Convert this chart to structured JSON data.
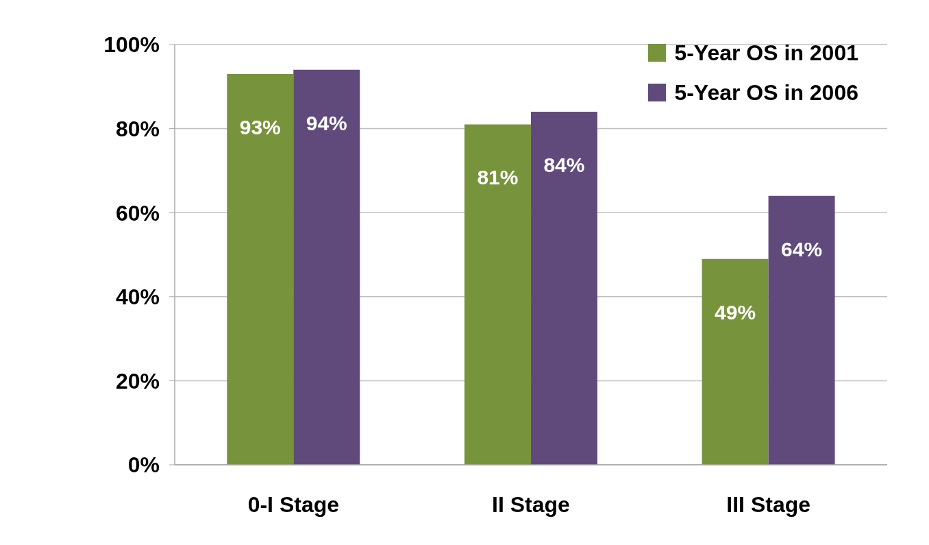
{
  "chart_data": {
    "type": "bar",
    "categories": [
      "0-I Stage",
      "II Stage",
      "III Stage"
    ],
    "series": [
      {
        "name": "5-Year OS in 2001",
        "color": "#77933c",
        "values": [
          93,
          81,
          49
        ],
        "value_labels": [
          "93%",
          "81%",
          "49%"
        ]
      },
      {
        "name": "5-Year OS in 2006",
        "color": "#604a7b",
        "values": [
          94,
          84,
          64
        ],
        "value_labels": [
          "94%",
          "84%",
          "64%"
        ]
      }
    ],
    "ylim": [
      0,
      100
    ],
    "yticks": [
      {
        "value": 0,
        "label": "0%"
      },
      {
        "value": 20,
        "label": "20%"
      },
      {
        "value": 40,
        "label": "40%"
      },
      {
        "value": 60,
        "label": "60%"
      },
      {
        "value": 80,
        "label": "80%"
      },
      {
        "value": 100,
        "label": "100%"
      }
    ],
    "grid": "y",
    "legend": "top right"
  }
}
